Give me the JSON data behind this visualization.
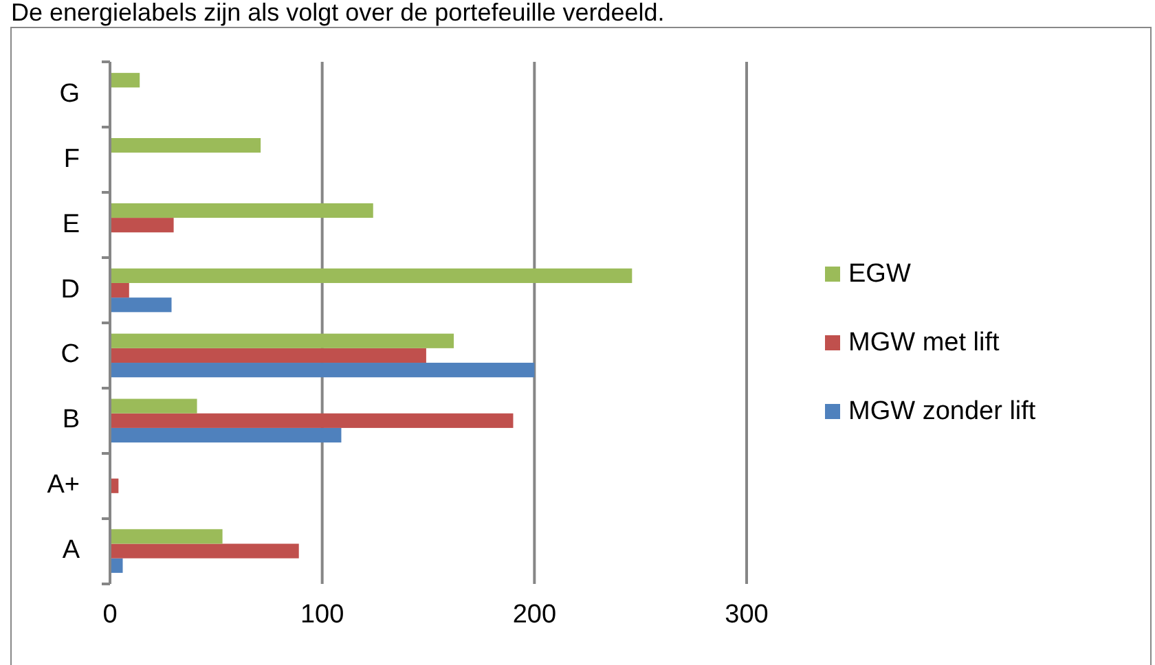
{
  "chart_data": {
    "type": "bar",
    "orientation": "horizontal",
    "title": "De energielabels zijn als volgt over de portefeuille verdeeld.",
    "categories": [
      "G",
      "F",
      "E",
      "D",
      "C",
      "B",
      "A+",
      "A"
    ],
    "series": [
      {
        "name": "MGW zonder lift",
        "color": "#4f81bd",
        "values": [
          null,
          null,
          null,
          29,
          200,
          109,
          null,
          6
        ]
      },
      {
        "name": "MGW met lift",
        "color": "#c0504d",
        "values": [
          null,
          null,
          30,
          9,
          149,
          190,
          4,
          89
        ]
      },
      {
        "name": "EGW",
        "color": "#9bbb59",
        "values": [
          14,
          71,
          124,
          246,
          162,
          41,
          null,
          53
        ]
      }
    ],
    "xlim": [
      0,
      300
    ],
    "xticks": [
      0,
      100,
      200,
      300
    ],
    "grid": "x",
    "legend": "right"
  }
}
